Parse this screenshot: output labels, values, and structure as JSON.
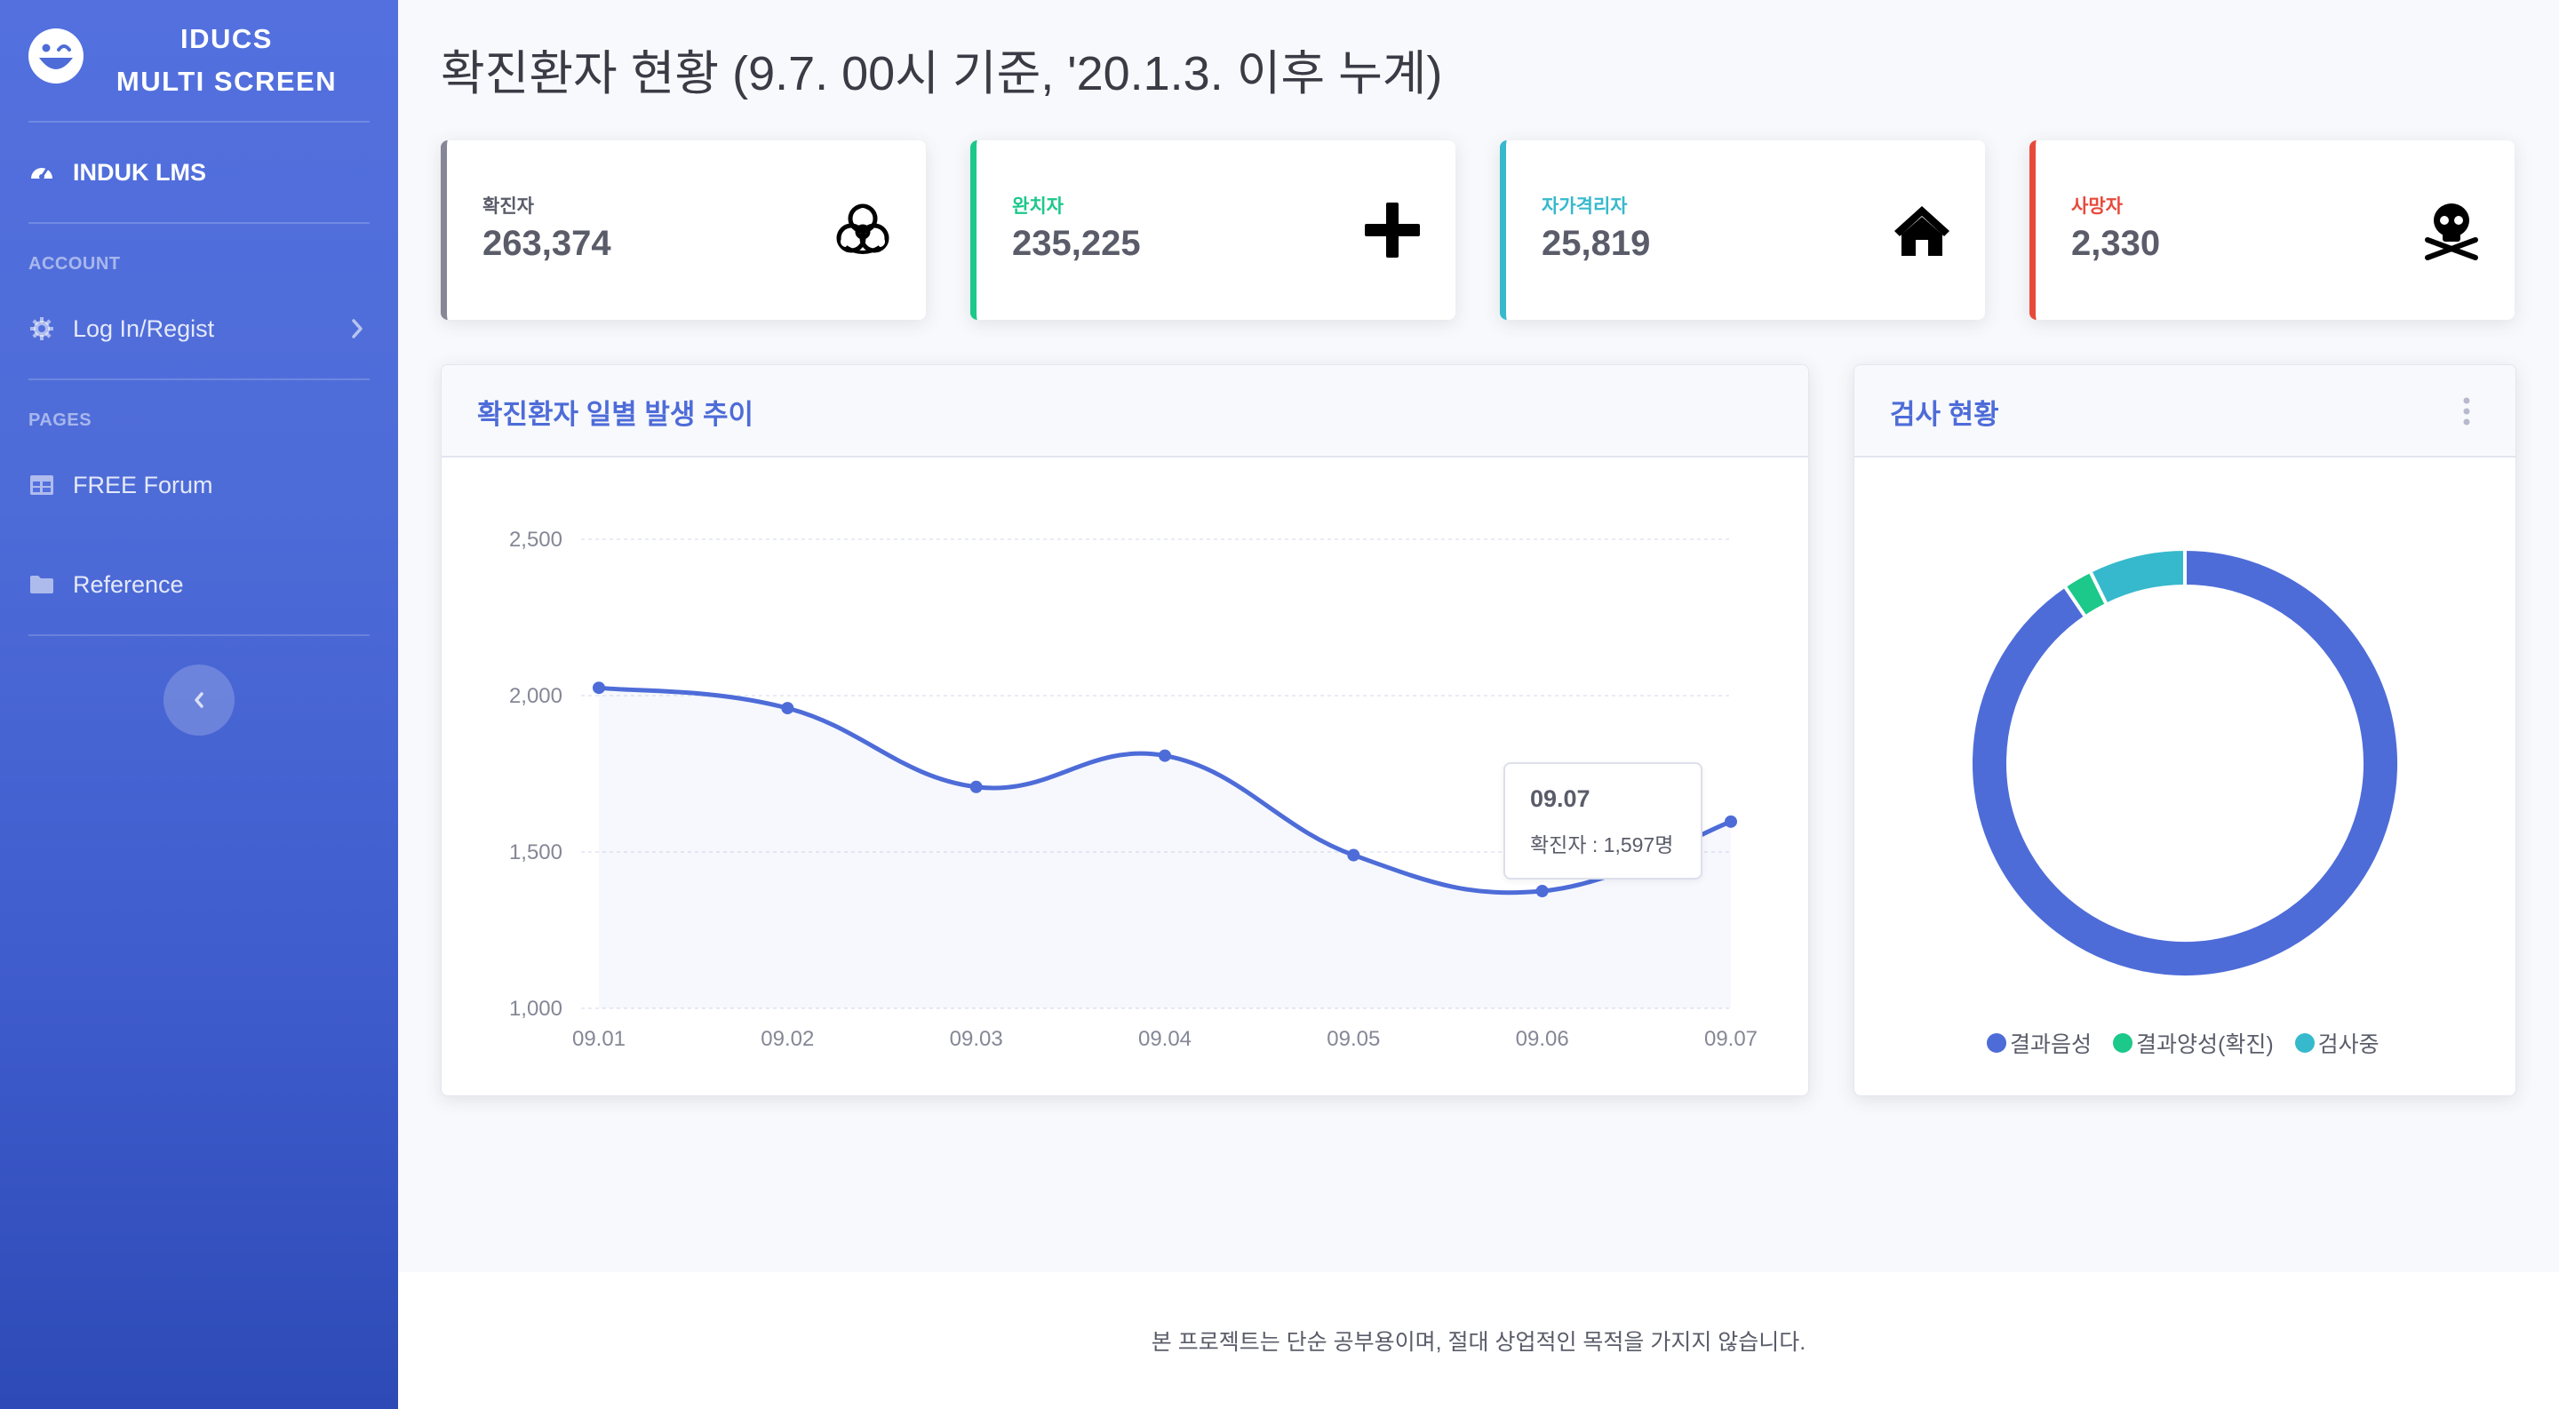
{
  "sidebar": {
    "brand_line1": "IDUCS",
    "brand_line2": "MULTI SCREEN",
    "brand_icon": "laugh-wink-icon",
    "dashboard_label": "INDUK LMS",
    "heading_account": "ACCOUNT",
    "login_label": "Log In/Regist",
    "heading_pages": "PAGES",
    "forum_label": "FREE Forum",
    "reference_label": "Reference"
  },
  "header": {
    "title": "확진환자 현황 (9.7. 00시 기준, '20.1.3. 이후 누계)"
  },
  "stats": [
    {
      "label": "확진자",
      "value": "263,374",
      "color": "#858796",
      "icon": "biohazard-icon"
    },
    {
      "label": "완치자",
      "value": "235,225",
      "color": "#1cc88a",
      "icon": "plus-icon"
    },
    {
      "label": "자가격리자",
      "value": "25,819",
      "color": "#36b9cc",
      "icon": "home-icon"
    },
    {
      "label": "사망자",
      "value": "2,330",
      "color": "#e74a3b",
      "icon": "skull-crossbones-icon"
    }
  ],
  "line_card": {
    "title": "확진환자 일별 발생 추이",
    "tooltip_title": "09.07",
    "tooltip_body": "확진자 : 1,597명"
  },
  "pie_card": {
    "title": "검사 현황"
  },
  "chart_data": [
    {
      "type": "area",
      "title": "확진환자 일별 발생 추이",
      "categories": [
        "09.01",
        "09.02",
        "09.03",
        "09.04",
        "09.05",
        "09.06",
        "09.07"
      ],
      "series": [
        {
          "name": "확진자",
          "values": [
            2025,
            1960,
            1708,
            1808,
            1490,
            1375,
            1597
          ],
          "color": "#4e6cd8"
        }
      ],
      "ylim": [
        1000,
        2500
      ],
      "yticks": [
        "1,000",
        "1,500",
        "2,000",
        "2,500"
      ],
      "ytick_values": [
        1000,
        1500,
        2000,
        2500
      ],
      "grid": true
    },
    {
      "type": "pie",
      "title": "검사 현황",
      "labels": [
        "결과음성",
        "결과양성(확진)",
        "검사중"
      ],
      "values": [
        90.5,
        2.2,
        7.3
      ],
      "colors": [
        "#4e6cd8",
        "#1cc88a",
        "#36b9cc"
      ],
      "legend": "bottom"
    }
  ],
  "footer": {
    "text": "본 프로젝트는 단순 공부용이며, 절대 상업적인 목적을 가지지 않습니다."
  }
}
